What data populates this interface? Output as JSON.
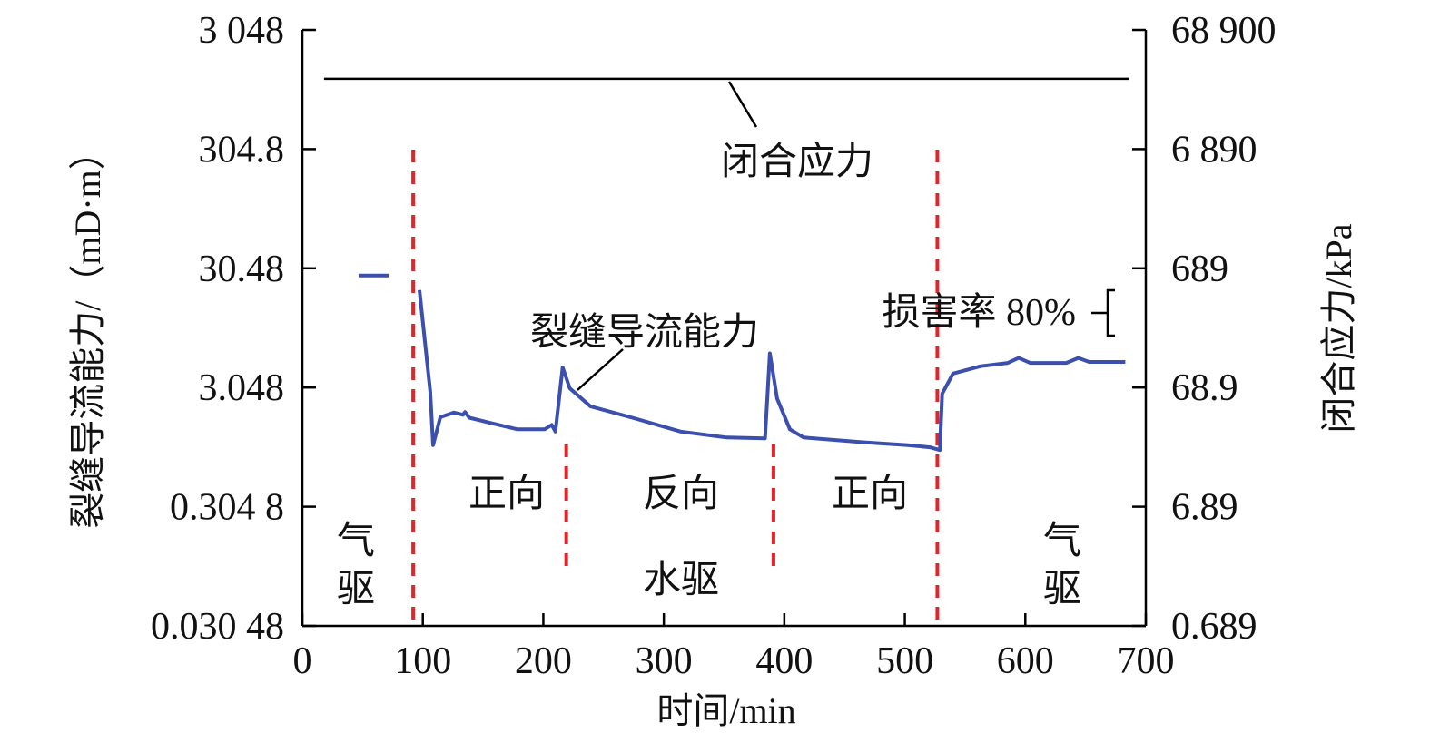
{
  "chart_data": {
    "type": "line",
    "title": "",
    "xlabel": "时间/min",
    "ylabel_left": "裂缝导流能力/（mD·m）",
    "ylabel_right": "闭合应力/kPa",
    "xlim": [
      0,
      700
    ],
    "ylim_left": [
      0.03048,
      3048
    ],
    "ylim_right": [
      0.689,
      68900
    ],
    "yscale": "log",
    "grid": false,
    "x_ticks": [
      "0",
      "100",
      "200",
      "300",
      "400",
      "500",
      "600",
      "700"
    ],
    "x_tick_values": [
      0,
      100,
      200,
      300,
      400,
      500,
      600,
      700
    ],
    "y_left_ticks": [
      "3 048",
      "304.8",
      "30.48",
      "3.048",
      "0.304 8",
      "0.030 48"
    ],
    "y_left_tick_values": [
      3048,
      304.8,
      30.48,
      3.048,
      0.3048,
      0.03048
    ],
    "y_right_ticks": [
      "68 900",
      "6 890",
      "689",
      "68.9",
      "6.89",
      "0.689"
    ],
    "y_right_tick_values": [
      68900,
      6890,
      689,
      68.9,
      6.89,
      0.689
    ],
    "series": [
      {
        "name": "裂缝导流能力",
        "axis": "left",
        "color": "#3a4fae",
        "segments": [
          [
            [
              46.7,
              26.5
            ],
            [
              71.6,
              26.5
            ]
          ],
          [
            [
              97.2,
              20.0
            ],
            [
              106.2,
              2.8
            ],
            [
              108.5,
              1.0
            ],
            [
              114.5,
              1.72
            ],
            [
              125.8,
              1.88
            ],
            [
              133.4,
              1.8
            ],
            [
              135,
              1.9
            ],
            [
              138.6,
              1.7
            ],
            [
              156,
              1.54
            ],
            [
              178.6,
              1.36
            ],
            [
              201,
              1.36
            ],
            [
              207,
              1.48
            ],
            [
              210,
              1.3
            ],
            [
              216,
              4.5
            ],
            [
              222,
              3.0
            ],
            [
              239,
              2.12
            ],
            [
              276.5,
              1.67
            ],
            [
              314,
              1.3
            ],
            [
              352,
              1.16
            ],
            [
              384,
              1.14
            ],
            [
              388,
              5.9
            ],
            [
              394,
              2.46
            ],
            [
              404.6,
              1.36
            ],
            [
              416,
              1.16
            ],
            [
              465,
              1.06
            ],
            [
              502.6,
              1.0
            ],
            [
              521,
              0.96
            ],
            [
              529,
              0.91
            ],
            [
              531,
              2.7
            ],
            [
              540,
              3.99
            ],
            [
              563,
              4.6
            ],
            [
              585.5,
              4.9
            ],
            [
              594.5,
              5.4
            ],
            [
              604,
              4.9
            ],
            [
              634,
              4.9
            ],
            [
              644,
              5.4
            ],
            [
              653,
              5.0
            ],
            [
              683,
              5.0
            ]
          ]
        ]
      },
      {
        "name": "闭合应力",
        "axis": "right",
        "color": "#000000",
        "segments": [
          [
            [
              18,
              26800
            ],
            [
              686,
              26800
            ]
          ]
        ]
      }
    ],
    "phase_boundaries": [
      {
        "x": 92,
        "full": true
      },
      {
        "x": 219,
        "full": false
      },
      {
        "x": 391,
        "full": false
      },
      {
        "x": 527,
        "full": true
      }
    ],
    "boundary_color": "#e0262b",
    "annotations": {
      "closure_stress": "闭合应力",
      "conductivity": "裂缝导流能力",
      "damage": "损害率 80%",
      "gas_drive_1a": "气",
      "gas_drive_1b": "驱",
      "forward_1": "正向",
      "reverse": "反向",
      "forward_2": "正向",
      "water_drive": "水驱",
      "gas_drive_2a": "气",
      "gas_drive_2b": "驱"
    }
  }
}
